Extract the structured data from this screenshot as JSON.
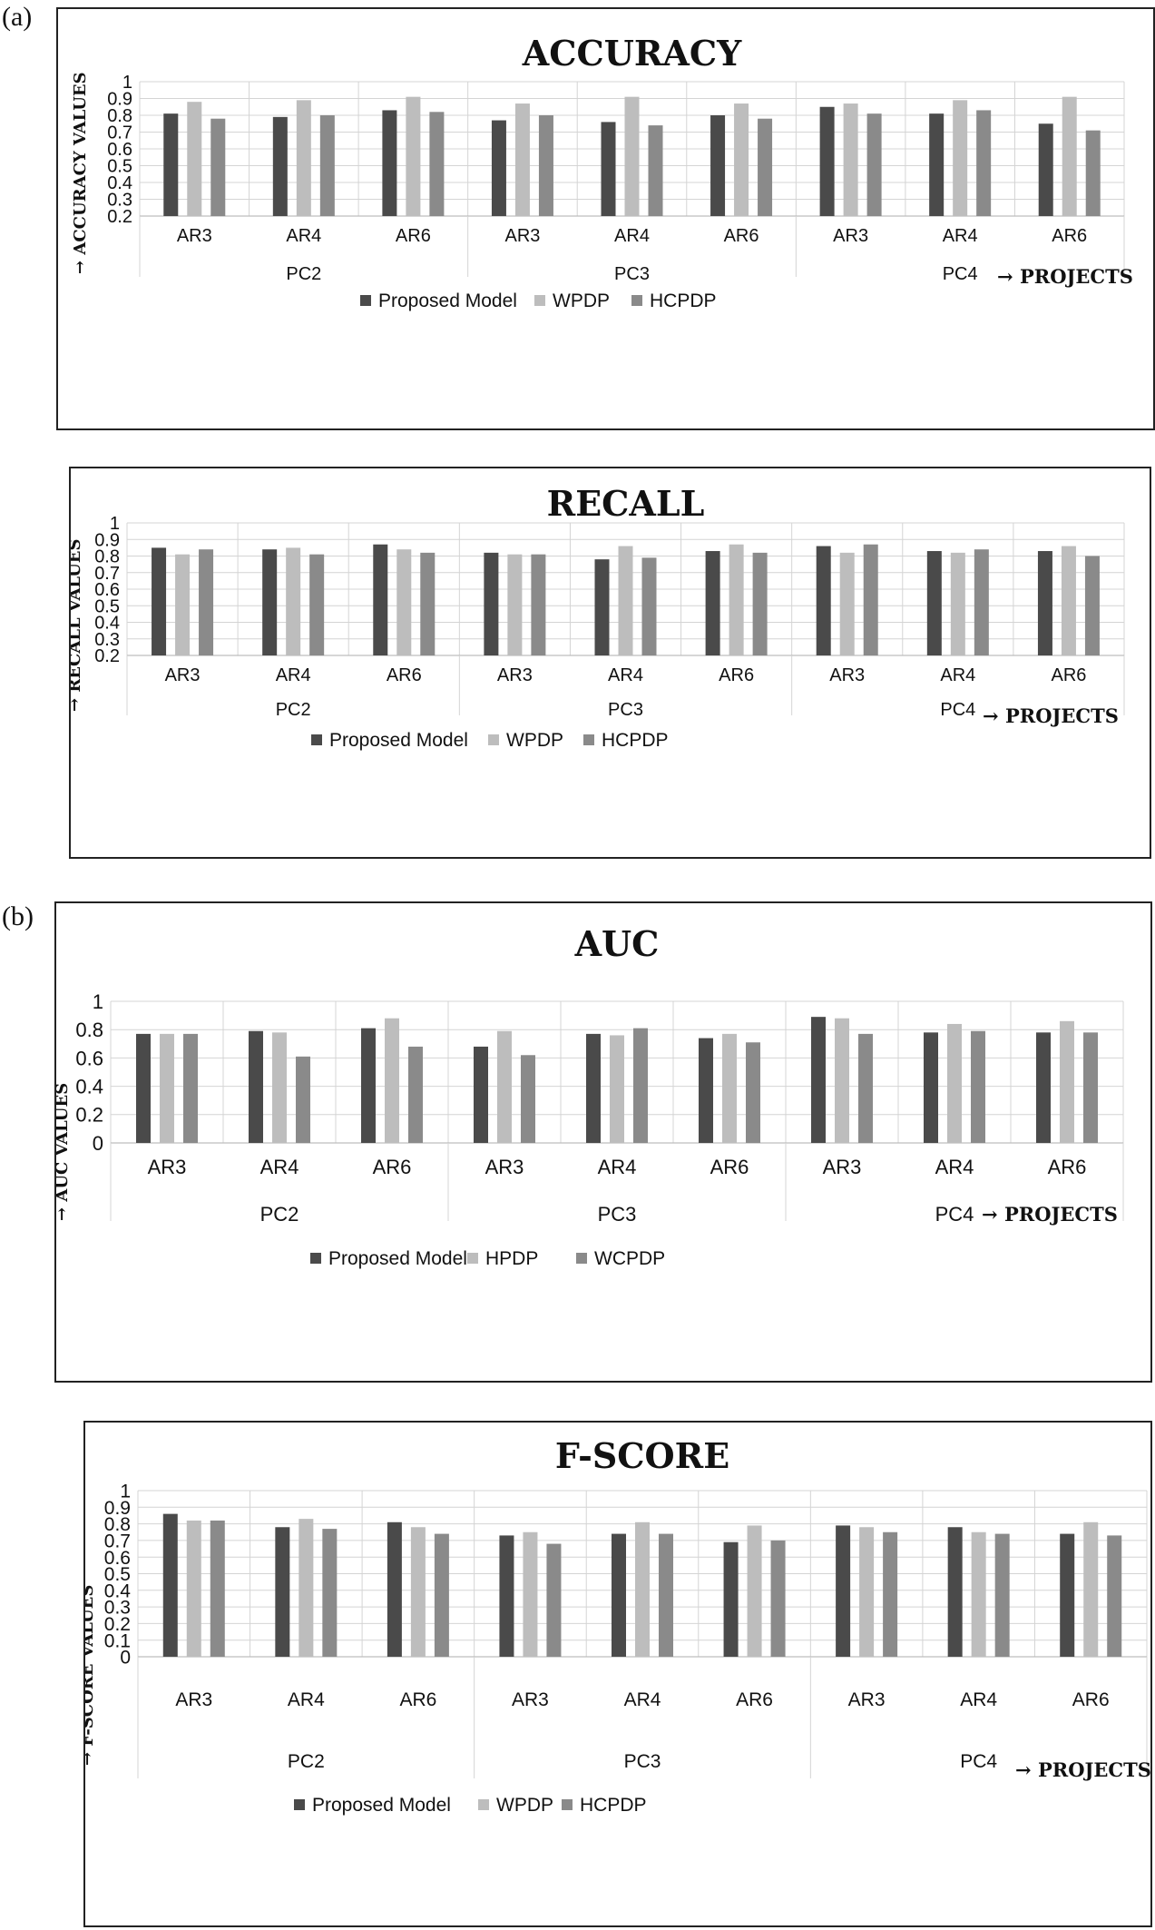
{
  "panel_labels": [
    "(a)",
    "(b)"
  ],
  "chart_data": [
    {
      "type": "bar",
      "title": "ACCURACY",
      "ylabel": "→ ACCURACY VALUES",
      "xlabel": "→ PROJECTS",
      "ylim": [
        0.2,
        1
      ],
      "yticks": [
        1,
        0.9,
        0.8,
        0.7,
        0.6,
        0.5,
        0.4,
        0.3,
        0.2
      ],
      "ytick_labels": [
        "1",
        "0.9",
        "0.8",
        "0.7",
        "0.6",
        "0.5",
        "0.4",
        "0.3",
        "0.2"
      ],
      "groups": [
        "PC2",
        "PC3",
        "PC4"
      ],
      "categories": [
        "AR3",
        "AR4",
        "AR6",
        "AR3",
        "AR4",
        "AR6",
        "AR3",
        "AR4",
        "AR6"
      ],
      "series": [
        {
          "name": "Proposed Model",
          "color": "#4a4a4a",
          "values": [
            0.81,
            0.79,
            0.83,
            0.77,
            0.76,
            0.8,
            0.85,
            0.81,
            0.75
          ]
        },
        {
          "name": "WPDP",
          "color": "#bdbdbd",
          "values": [
            0.88,
            0.89,
            0.91,
            0.87,
            0.91,
            0.87,
            0.87,
            0.89,
            0.91
          ]
        },
        {
          "name": "HCPDP",
          "color": "#8a8a8a",
          "values": [
            0.78,
            0.8,
            0.82,
            0.8,
            0.74,
            0.78,
            0.81,
            0.83,
            0.71
          ]
        }
      ],
      "legend": "bottom",
      "grid": true
    },
    {
      "type": "bar",
      "title": "RECALL",
      "ylabel": "→ RECALL VALUES",
      "xlabel": "→ PROJECTS",
      "ylim": [
        0.2,
        1
      ],
      "yticks": [
        1,
        0.9,
        0.8,
        0.7,
        0.6,
        0.5,
        0.4,
        0.3,
        0.2
      ],
      "ytick_labels": [
        "1",
        "0.9",
        "0.8",
        "0.7",
        "0.6",
        "0.5",
        "0.4",
        "0.3",
        "0.2"
      ],
      "groups": [
        "PC2",
        "PC3",
        "PC4"
      ],
      "categories": [
        "AR3",
        "AR4",
        "AR6",
        "AR3",
        "AR4",
        "AR6",
        "AR3",
        "AR4",
        "AR6"
      ],
      "series": [
        {
          "name": "Proposed Model",
          "color": "#4a4a4a",
          "values": [
            0.85,
            0.84,
            0.87,
            0.82,
            0.78,
            0.83,
            0.86,
            0.83,
            0.83
          ]
        },
        {
          "name": "WPDP",
          "color": "#bdbdbd",
          "values": [
            0.81,
            0.85,
            0.84,
            0.81,
            0.86,
            0.87,
            0.82,
            0.82,
            0.86
          ]
        },
        {
          "name": "HCPDP",
          "color": "#8a8a8a",
          "values": [
            0.84,
            0.81,
            0.82,
            0.81,
            0.79,
            0.82,
            0.87,
            0.84,
            0.8
          ]
        }
      ],
      "legend": "bottom",
      "grid": true
    },
    {
      "type": "bar",
      "title": "AUC",
      "ylabel": "→ AUC VALUES",
      "xlabel": "→ PROJECTS",
      "ylim": [
        0,
        1
      ],
      "yticks": [
        1,
        0.8,
        0.6,
        0.4,
        0.2,
        0
      ],
      "ytick_labels": [
        "1",
        "0.8",
        "0.6",
        "0.4",
        "0.2",
        "0"
      ],
      "groups": [
        "PC2",
        "PC3",
        "PC4"
      ],
      "categories": [
        "AR3",
        "AR4",
        "AR6",
        "AR3",
        "AR4",
        "AR6",
        "AR3",
        "AR4",
        "AR6"
      ],
      "series": [
        {
          "name": "Proposed Model",
          "color": "#4a4a4a",
          "values": [
            0.77,
            0.79,
            0.81,
            0.68,
            0.77,
            0.74,
            0.89,
            0.78,
            0.78
          ]
        },
        {
          "name": "HPDP",
          "color": "#bdbdbd",
          "values": [
            0.77,
            0.78,
            0.88,
            0.79,
            0.76,
            0.77,
            0.88,
            0.84,
            0.86
          ]
        },
        {
          "name": "WCPDP",
          "color": "#8a8a8a",
          "values": [
            0.77,
            0.61,
            0.68,
            0.62,
            0.81,
            0.71,
            0.77,
            0.79,
            0.78
          ]
        }
      ],
      "legend": "bottom",
      "grid": true
    },
    {
      "type": "bar",
      "title": "F-SCORE",
      "ylabel": "→ F-SCORE VALUES",
      "xlabel": "→ PROJECTS",
      "ylim": [
        0,
        1
      ],
      "yticks": [
        1,
        0.9,
        0.8,
        0.7,
        0.6,
        0.5,
        0.4,
        0.3,
        0.2,
        0.1,
        0
      ],
      "ytick_labels": [
        "1",
        "0.9",
        "0.8",
        "0.7",
        "0.6",
        "0.5",
        "0.4",
        "0.3",
        "0.2",
        "0.1",
        "0"
      ],
      "groups": [
        "PC2",
        "PC3",
        "PC4"
      ],
      "categories": [
        "AR3",
        "AR4",
        "AR6",
        "AR3",
        "AR4",
        "AR6",
        "AR3",
        "AR4",
        "AR6"
      ],
      "series": [
        {
          "name": "Proposed Model",
          "color": "#4a4a4a",
          "values": [
            0.86,
            0.78,
            0.81,
            0.73,
            0.74,
            0.69,
            0.79,
            0.78,
            0.74
          ]
        },
        {
          "name": "WPDP",
          "color": "#bdbdbd",
          "values": [
            0.82,
            0.83,
            0.78,
            0.75,
            0.81,
            0.79,
            0.78,
            0.75,
            0.81
          ]
        },
        {
          "name": "HCPDP",
          "color": "#8a8a8a",
          "values": [
            0.82,
            0.77,
            0.74,
            0.68,
            0.74,
            0.7,
            0.75,
            0.74,
            0.73
          ]
        }
      ],
      "legend": "bottom",
      "grid": true
    }
  ]
}
